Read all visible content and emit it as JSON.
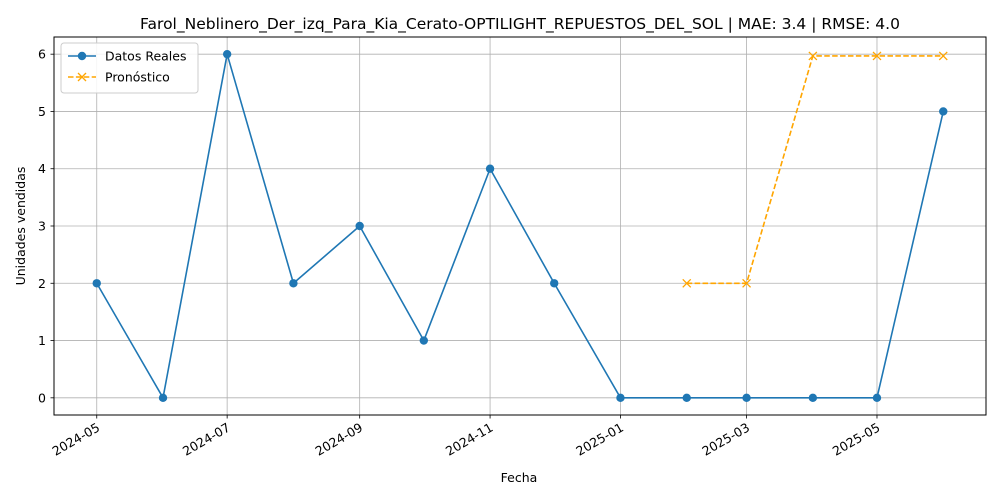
{
  "chart_data": {
    "type": "line",
    "title": "Farol_Neblinero_Der_izq_Para_Kia_Cerato-OPTILIGHT_REPUESTOS_DEL_SOL | MAE: 3.4 | RMSE: 4.0",
    "xlabel": "Fecha",
    "ylabel": "Unidades vendidas",
    "x_ticks": [
      "2024-05",
      "2024-07",
      "2024-09",
      "2024-11",
      "2025-01",
      "2025-03",
      "2025-05"
    ],
    "y_ticks": [
      0,
      1,
      2,
      3,
      4,
      5,
      6
    ],
    "xlim": [
      "2024-04-11",
      "2025-06-21"
    ],
    "ylim": [
      -0.3,
      6.3
    ],
    "grid": true,
    "legend_position": "top-left",
    "series": [
      {
        "name": "Datos Reales",
        "color": "#1f77b4",
        "linestyle": "solid",
        "marker": "circle",
        "x": [
          "2024-05-01",
          "2024-06-01",
          "2024-07-01",
          "2024-08-01",
          "2024-09-01",
          "2024-10-01",
          "2024-11-01",
          "2024-12-01",
          "2025-01-01",
          "2025-02-01",
          "2025-03-01",
          "2025-04-01",
          "2025-05-01",
          "2025-06-01"
        ],
        "y": [
          2,
          0,
          6,
          2,
          3,
          1,
          4,
          2,
          0,
          0,
          0,
          0,
          0,
          5
        ]
      },
      {
        "name": "Pronóstico",
        "color": "#ffa500",
        "linestyle": "dashed",
        "marker": "x",
        "x": [
          "2025-02-01",
          "2025-03-01",
          "2025-04-01",
          "2025-05-01",
          "2025-06-01"
        ],
        "y": [
          2,
          2,
          5.97,
          5.97,
          5.97
        ]
      }
    ]
  }
}
